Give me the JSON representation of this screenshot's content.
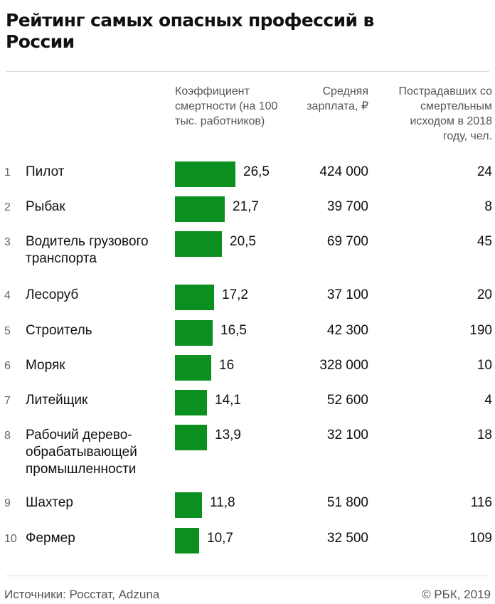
{
  "title": "Рейтинг самых опасных профессий в России",
  "headers": {
    "coefficient": "Коэффициент смертности (на 100 тыс. работников)",
    "salary": "Средняя зарплата, ₽",
    "victims": "Пострадавших со смертель­ным исходом в 2018 году, чел."
  },
  "footer": {
    "sources": "Источники: Росстат, Adzuna",
    "copyright": "© РБК, 2019"
  },
  "colors": {
    "bar": "#0b8f1e"
  },
  "chart_data": {
    "type": "table",
    "columns": [
      "Коэффициент смертности (на 100 тыс. работников)",
      "Средняя зарплата, ₽",
      "Пострадавших со смертельным исходом в 2018 году, чел."
    ],
    "rows": [
      {
        "rank": "1",
        "profession": "Пилот",
        "coefficient": 26.5,
        "coefficient_label": "26,5",
        "salary": "424 000",
        "victims": "24"
      },
      {
        "rank": "2",
        "profession": "Рыбак",
        "coefficient": 21.7,
        "coefficient_label": "21,7",
        "salary": "39 700",
        "victims": "8"
      },
      {
        "rank": "3",
        "profession": "Водитель грузового транспорта",
        "coefficient": 20.5,
        "coefficient_label": "20,5",
        "salary": "69 700",
        "victims": "45"
      },
      {
        "rank": "4",
        "profession": "Лесоруб",
        "coefficient": 17.2,
        "coefficient_label": "17,2",
        "salary": "37 100",
        "victims": "20"
      },
      {
        "rank": "5",
        "profession": "Строитель",
        "coefficient": 16.5,
        "coefficient_label": "16,5",
        "salary": "42 300",
        "victims": "190"
      },
      {
        "rank": "6",
        "profession": "Моряк",
        "coefficient": 16,
        "coefficient_label": "16",
        "salary": "328 000",
        "victims": "10"
      },
      {
        "rank": "7",
        "profession": "Литейщик",
        "coefficient": 14.1,
        "coefficient_label": "14,1",
        "salary": "52 600",
        "victims": "4"
      },
      {
        "rank": "8",
        "profession": "Рабочий дерево­обрабатывающей промышленности",
        "coefficient": 13.9,
        "coefficient_label": "13,9",
        "salary": "32 100",
        "victims": "18"
      },
      {
        "rank": "9",
        "profession": "Шахтер",
        "coefficient": 11.8,
        "coefficient_label": "11,8",
        "salary": "51 800",
        "victims": "116"
      },
      {
        "rank": "10",
        "profession": "Фермер",
        "coefficient": 10.7,
        "coefficient_label": "10,7",
        "salary": "32 500",
        "victims": "109"
      }
    ]
  }
}
